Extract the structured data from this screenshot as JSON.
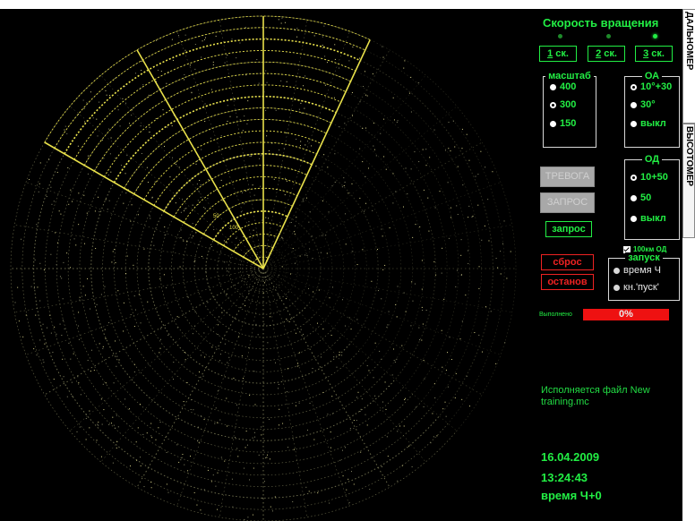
{
  "rotation": {
    "title": "Скорость вращения",
    "buttons": [
      {
        "key": "1",
        "label": " ск."
      },
      {
        "key": "2",
        "label": " ск."
      },
      {
        "key": "3",
        "label": " ск."
      }
    ],
    "active_index": 2
  },
  "scale": {
    "title": "масштаб",
    "options": [
      "400",
      "300",
      "150"
    ],
    "selected": "300"
  },
  "oa": {
    "title": "ОА",
    "options": [
      "10°+30",
      "30°",
      "выкл"
    ],
    "selected": "10°+30"
  },
  "od": {
    "title": "ОД",
    "options": [
      "10+50",
      "50",
      "выкл"
    ],
    "selected": "10+50"
  },
  "buttons": {
    "alarm": "ТРЕВОГА",
    "request_upper": "ЗАПРОС",
    "request": "запрос",
    "reset": "сброс",
    "stop": "останов"
  },
  "checkbox_100km": {
    "label": "100км ОД",
    "checked": true
  },
  "launch": {
    "title": "запуск",
    "options": [
      "время Ч",
      "кн.'пуск'"
    ]
  },
  "progress": {
    "label": "Выполнено",
    "value_text": "0%",
    "value": 0
  },
  "status_message": "Исполняется файл New training.mc",
  "date": "16.04.2009",
  "time": "13:24:43",
  "time_label": "время Ч+0",
  "tabs": [
    "ДАЛЬНОМЕР",
    "ВЫСОТОМЕР"
  ],
  "radar_labels": [
    "100",
    "50"
  ],
  "colors": {
    "background": "#000000",
    "text_green": "#22ee44",
    "radar_yellow": "#e8e04a",
    "alert_red": "#ee2222"
  }
}
